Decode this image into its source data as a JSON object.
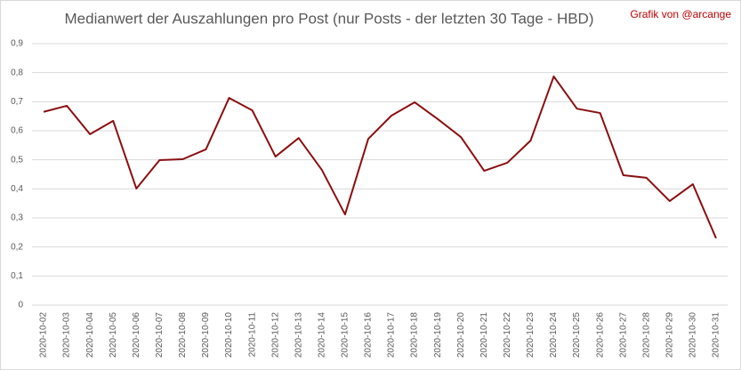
{
  "chart_data": {
    "type": "line",
    "title": "Medianwert der Auszahlungen pro Post (nur Posts - der letzten 30 Tage - HBD)",
    "annotation": "Grafik von @arcange",
    "categories": [
      "2020-10-02",
      "2020-10-03",
      "2020-10-04",
      "2020-10-05",
      "2020-10-06",
      "2020-10-07",
      "2020-10-08",
      "2020-10-09",
      "2020-10-10",
      "2020-10-11",
      "2020-10-12",
      "2020-10-13",
      "2020-10-14",
      "2020-10-15",
      "2020-10-16",
      "2020-10-17",
      "2020-10-18",
      "2020-10-19",
      "2020-10-20",
      "2020-10-21",
      "2020-10-22",
      "2020-10-23",
      "2020-10-24",
      "2020-10-25",
      "2020-10-26",
      "2020-10-27",
      "2020-10-28",
      "2020-10-29",
      "2020-10-30",
      "2020-10-31"
    ],
    "series": [
      {
        "color": "#8b0f0f",
        "values": [
          0.665,
          0.686,
          0.588,
          0.634,
          0.401,
          0.499,
          0.502,
          0.536,
          0.713,
          0.67,
          0.511,
          0.575,
          0.465,
          0.312,
          0.572,
          0.652,
          0.698,
          0.64,
          0.578,
          0.462,
          0.49,
          0.566,
          0.787,
          0.676,
          0.661,
          0.447,
          0.438,
          0.358,
          0.416,
          0.23
        ]
      }
    ],
    "ylim": [
      0,
      0.9
    ],
    "yticks": [
      0,
      {
        "value": 0.1,
        "label": "0,1"
      },
      {
        "value": 0.2,
        "label": "0,2"
      },
      {
        "value": 0.3,
        "label": "0,3"
      },
      {
        "value": 0.4,
        "label": "0,4"
      },
      {
        "value": 0.5,
        "label": "0,5"
      },
      {
        "value": 0.6,
        "label": "0,6"
      },
      {
        "value": 0.7,
        "label": "0,7"
      },
      {
        "value": 0.8,
        "label": "0,8"
      },
      {
        "value": 0.9,
        "label": "0,9"
      }
    ],
    "grid": true
  }
}
